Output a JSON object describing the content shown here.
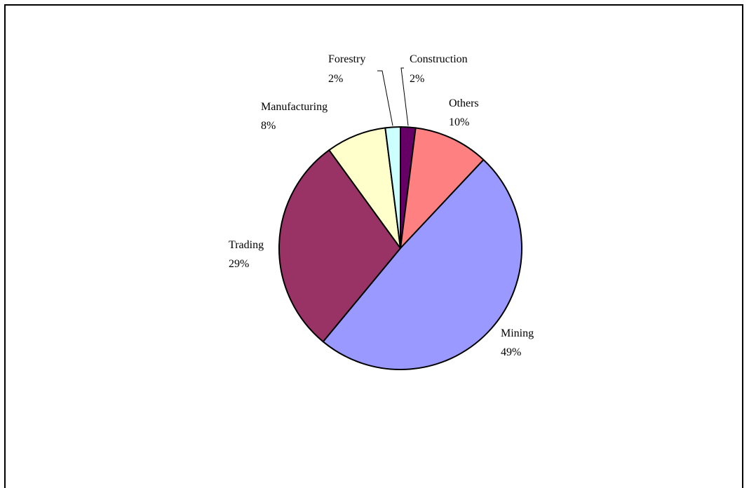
{
  "chart_data": {
    "type": "pie",
    "title": "",
    "slices": [
      {
        "label": "Construction",
        "value": 2,
        "display": "2%",
        "color": "#660066"
      },
      {
        "label": "Others",
        "value": 10,
        "display": "10%",
        "color": "#FF8080"
      },
      {
        "label": "Mining",
        "value": 49,
        "display": "49%",
        "color": "#9999FF"
      },
      {
        "label": "Trading",
        "value": 29,
        "display": "29%",
        "color": "#993366"
      },
      {
        "label": "Manufacturing",
        "value": 8,
        "display": "8%",
        "color": "#FFFFCC"
      },
      {
        "label": "Forestry",
        "value": 2,
        "display": "2%",
        "color": "#CCFFFF"
      }
    ],
    "start": "12 o'clock",
    "direction": "clockwise",
    "legend": "none",
    "data_labels": "category name and percentage, outside slices with leader lines for small slices"
  }
}
